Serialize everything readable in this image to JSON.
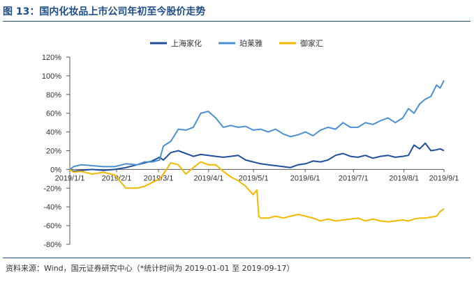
{
  "header": {
    "title": "图 13：国内化妆品上市公司年初至今股价走势"
  },
  "footer": {
    "source": "资料来源：Wind，国元证券研究中心（*统计时间为 2019-01-01 至 2019-09-17）"
  },
  "colors": {
    "title": "#1f4e8c",
    "series1": "#1f4e9c",
    "series2": "#4a8fd6",
    "series3": "#f5b800"
  },
  "chart_data": {
    "type": "line",
    "title": "国内化妆品上市公司年初至今股价走势",
    "xlabel": "",
    "ylabel": "",
    "ylim": [
      -0.8,
      1.2
    ],
    "yticks": [
      1.2,
      1.0,
      0.8,
      0.6,
      0.4,
      0.2,
      0.0,
      -0.2,
      -0.4,
      -0.6,
      -0.8
    ],
    "ytick_labels": [
      "120%",
      "100%",
      "80%",
      "60%",
      "40%",
      "20%",
      "0%",
      "-20%",
      "-40%",
      "-60%",
      "-80%"
    ],
    "x_range": [
      0,
      1
    ],
    "xticks": [
      0.0,
      0.125,
      0.237,
      0.371,
      0.491,
      0.629,
      0.758,
      0.893,
      1.0
    ],
    "xtick_labels": [
      "2019/1/1",
      "2019/2/1",
      "2019/3/1",
      "2019/4/1",
      "2019/5/1",
      "2019/6/1",
      "2019/7/1",
      "2019/8/1",
      "2019/9/1"
    ],
    "legend_position": "top-center",
    "series": [
      {
        "name": "上海家化",
        "color": "#1f4e9c",
        "x": [
          0,
          0.01,
          0.03,
          0.06,
          0.09,
          0.12,
          0.15,
          0.18,
          0.2,
          0.22,
          0.24,
          0.25,
          0.27,
          0.29,
          0.31,
          0.33,
          0.35,
          0.37,
          0.39,
          0.41,
          0.43,
          0.45,
          0.47,
          0.49,
          0.51,
          0.53,
          0.55,
          0.57,
          0.59,
          0.61,
          0.63,
          0.65,
          0.67,
          0.69,
          0.71,
          0.73,
          0.75,
          0.77,
          0.79,
          0.81,
          0.83,
          0.85,
          0.87,
          0.89,
          0.905,
          0.92,
          0.935,
          0.95,
          0.965,
          0.98,
          0.99,
          1.0
        ],
        "y": [
          0.0,
          -0.02,
          -0.01,
          0.0,
          -0.01,
          0.0,
          0.02,
          0.05,
          0.07,
          0.09,
          0.13,
          0.1,
          0.18,
          0.2,
          0.17,
          0.14,
          0.16,
          0.15,
          0.14,
          0.13,
          0.14,
          0.15,
          0.1,
          0.08,
          0.06,
          0.05,
          0.04,
          0.03,
          0.02,
          0.05,
          0.06,
          0.09,
          0.08,
          0.1,
          0.15,
          0.17,
          0.14,
          0.13,
          0.15,
          0.12,
          0.14,
          0.15,
          0.13,
          0.14,
          0.15,
          0.26,
          0.22,
          0.28,
          0.2,
          0.21,
          0.22,
          0.2
        ]
      },
      {
        "name": "珀莱雅",
        "color": "#4a8fd6",
        "x": [
          0,
          0.01,
          0.03,
          0.06,
          0.09,
          0.12,
          0.15,
          0.18,
          0.2,
          0.22,
          0.24,
          0.25,
          0.27,
          0.29,
          0.31,
          0.33,
          0.35,
          0.37,
          0.39,
          0.41,
          0.43,
          0.45,
          0.47,
          0.49,
          0.51,
          0.53,
          0.55,
          0.57,
          0.59,
          0.61,
          0.63,
          0.65,
          0.67,
          0.69,
          0.71,
          0.73,
          0.75,
          0.77,
          0.79,
          0.81,
          0.83,
          0.85,
          0.87,
          0.89,
          0.905,
          0.92,
          0.935,
          0.95,
          0.965,
          0.98,
          0.99,
          1.0
        ],
        "y": [
          0.0,
          0.03,
          0.05,
          0.04,
          0.03,
          0.03,
          0.06,
          0.05,
          0.08,
          0.08,
          0.1,
          0.25,
          0.3,
          0.43,
          0.42,
          0.45,
          0.6,
          0.62,
          0.55,
          0.45,
          0.47,
          0.45,
          0.46,
          0.42,
          0.43,
          0.4,
          0.43,
          0.38,
          0.35,
          0.37,
          0.4,
          0.36,
          0.42,
          0.45,
          0.43,
          0.5,
          0.45,
          0.45,
          0.5,
          0.48,
          0.52,
          0.55,
          0.5,
          0.55,
          0.65,
          0.6,
          0.7,
          0.75,
          0.78,
          0.9,
          0.87,
          0.95
        ]
      },
      {
        "name": "御家汇",
        "color": "#f5b800",
        "x": [
          0,
          0.01,
          0.03,
          0.06,
          0.09,
          0.12,
          0.15,
          0.18,
          0.2,
          0.22,
          0.24,
          0.25,
          0.27,
          0.29,
          0.31,
          0.33,
          0.35,
          0.37,
          0.39,
          0.41,
          0.43,
          0.45,
          0.47,
          0.49,
          0.5,
          0.505,
          0.51,
          0.53,
          0.55,
          0.57,
          0.59,
          0.61,
          0.63,
          0.65,
          0.67,
          0.69,
          0.71,
          0.73,
          0.75,
          0.77,
          0.79,
          0.81,
          0.83,
          0.85,
          0.87,
          0.89,
          0.905,
          0.92,
          0.935,
          0.95,
          0.965,
          0.98,
          0.99,
          1.0
        ],
        "y": [
          0.0,
          -0.03,
          -0.02,
          -0.05,
          -0.03,
          -0.06,
          -0.2,
          -0.2,
          -0.18,
          -0.14,
          -0.1,
          -0.05,
          0.07,
          0.05,
          -0.05,
          0.02,
          0.08,
          0.05,
          0.05,
          -0.02,
          -0.08,
          -0.12,
          -0.18,
          -0.27,
          -0.22,
          -0.5,
          -0.52,
          -0.52,
          -0.5,
          -0.52,
          -0.5,
          -0.48,
          -0.5,
          -0.52,
          -0.55,
          -0.53,
          -0.55,
          -0.54,
          -0.53,
          -0.52,
          -0.55,
          -0.53,
          -0.55,
          -0.56,
          -0.55,
          -0.54,
          -0.55,
          -0.53,
          -0.52,
          -0.52,
          -0.51,
          -0.5,
          -0.45,
          -0.42
        ]
      }
    ]
  }
}
